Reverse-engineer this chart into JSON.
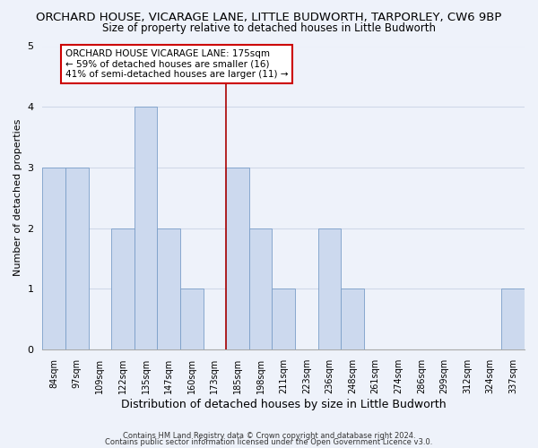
{
  "title": "ORCHARD HOUSE, VICARAGE LANE, LITTLE BUDWORTH, TARPORLEY, CW6 9BP",
  "subtitle": "Size of property relative to detached houses in Little Budworth",
  "xlabel": "Distribution of detached houses by size in Little Budworth",
  "ylabel": "Number of detached properties",
  "bin_labels": [
    "84sqm",
    "97sqm",
    "109sqm",
    "122sqm",
    "135sqm",
    "147sqm",
    "160sqm",
    "173sqm",
    "185sqm",
    "198sqm",
    "211sqm",
    "223sqm",
    "236sqm",
    "248sqm",
    "261sqm",
    "274sqm",
    "286sqm",
    "299sqm",
    "312sqm",
    "324sqm",
    "337sqm"
  ],
  "bar_values": [
    3,
    3,
    0,
    2,
    4,
    2,
    1,
    0,
    3,
    2,
    1,
    0,
    2,
    1,
    0,
    0,
    0,
    0,
    0,
    0,
    1
  ],
  "bar_color": "#ccd9ee",
  "bar_edge_color": "#7a9ec8",
  "ref_line_index": 7,
  "ref_line_color": "#aa0000",
  "annotation_text": "ORCHARD HOUSE VICARAGE LANE: 175sqm\n← 59% of detached houses are smaller (16)\n41% of semi-detached houses are larger (11) →",
  "annotation_box_color": "#ffffff",
  "annotation_box_edge": "#cc0000",
  "ylim": [
    0,
    5
  ],
  "yticks": [
    0,
    1,
    2,
    3,
    4,
    5
  ],
  "footer1": "Contains HM Land Registry data © Crown copyright and database right 2024.",
  "footer2": "Contains public sector information licensed under the Open Government Licence v3.0.",
  "background_color": "#eef2fa",
  "title_fontsize": 9.5,
  "subtitle_fontsize": 8.5,
  "xlabel_fontsize": 9,
  "ylabel_fontsize": 8,
  "grid_color": "#d0d8e8"
}
